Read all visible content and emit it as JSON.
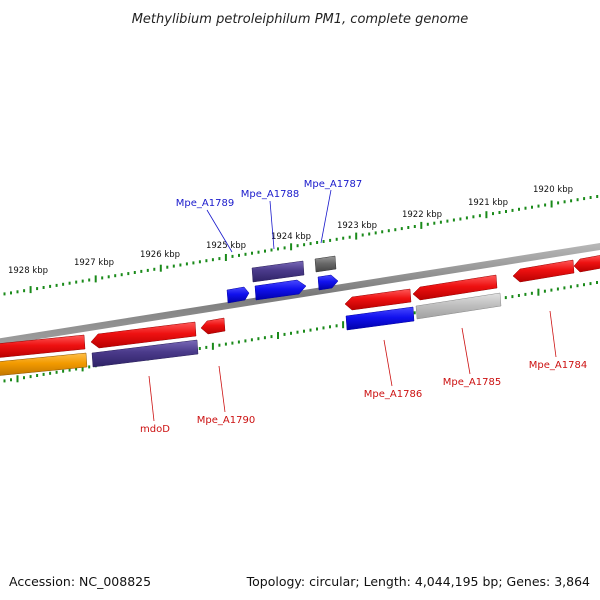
{
  "title": "Methylibium petroleiphilum PM1, complete genome",
  "footer": {
    "accession": "Accession: NC_008825",
    "topology": "Topology: circular; Length: 4,044,195 bp; Genes: 3,864"
  },
  "scale_labels": [
    "1928 kbp",
    "1927 kbp",
    "1926 kbp",
    "1925 kbp",
    "1924 kbp",
    "1923 kbp",
    "1922 kbp",
    "1921 kbp",
    "1920 kbp"
  ],
  "gene_labels": {
    "mpe_a1789": "Mpe_A1789",
    "mpe_a1788": "Mpe_A1788",
    "mpe_a1787": "Mpe_A1787",
    "mdod": "mdoD",
    "mpe_a1790": "Mpe_A1790",
    "mpe_a1786": "Mpe_A1786",
    "mpe_a1785": "Mpe_A1785",
    "mpe_a1784": "Mpe_A1784"
  },
  "colors": {
    "red": "#ee1111",
    "blue": "#1111ee",
    "purple": "#4a3a8a",
    "gray": "#6a6a6a",
    "lightgray": "#bdbdbd",
    "orange": "#f29a00",
    "tick": "#1a8a1a",
    "backbone": "#888888",
    "label_blue": "#1a1acc",
    "label_red": "#cc1111"
  }
}
